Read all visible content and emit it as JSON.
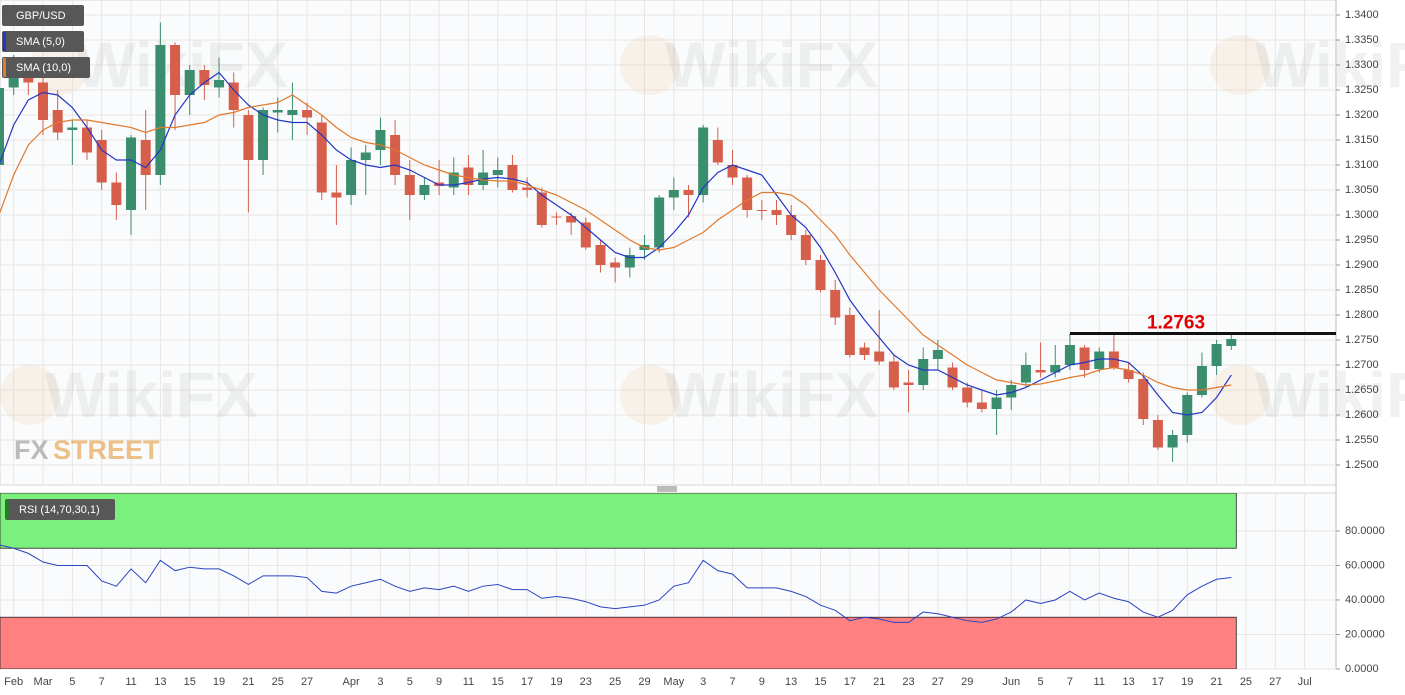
{
  "chart_data": [
    {
      "type": "candlestick",
      "categories": [
        null,
        "Feb",
        null,
        "Mar",
        null,
        "5",
        null,
        "7",
        null,
        "11",
        null,
        "13",
        null,
        "15",
        null,
        "19",
        null,
        "21",
        null,
        "25",
        null,
        "27",
        null,
        null,
        "Apr",
        null,
        "3",
        null,
        "5",
        null,
        "9",
        null,
        "11",
        null,
        "15",
        null,
        "17",
        null,
        "19",
        null,
        "23",
        null,
        "25",
        null,
        "29",
        null,
        "May",
        null,
        "3",
        null,
        "7",
        null,
        "9",
        null,
        "13",
        null,
        "15",
        null,
        "17",
        null,
        "21",
        null,
        "23",
        null,
        "27",
        null,
        "29",
        null,
        null,
        "Jun",
        null,
        "5",
        null,
        "7",
        null,
        "11",
        null,
        "13",
        null,
        "17",
        null,
        "19",
        null,
        "21",
        null,
        "25",
        null,
        "27",
        null,
        "Jul"
      ],
      "series": [
        {
          "name": "GBP/USD",
          "up_color": "#3a8d6d",
          "down_color": "#d65f4b",
          "open": [
            1.31,
            1.3255,
            1.33,
            1.3265,
            1.321,
            1.317,
            1.3175,
            1.315,
            1.3065,
            1.301,
            1.315,
            1.308,
            1.334,
            1.324,
            1.329,
            1.3255,
            1.3265,
            1.32,
            1.311,
            1.3205,
            1.32,
            1.321,
            1.3185,
            1.3045,
            1.304,
            1.311,
            1.313,
            1.316,
            1.308,
            1.304,
            1.3065,
            1.3055,
            1.3095,
            1.306,
            1.308,
            1.31,
            1.3055,
            1.3045,
            1.2997,
            1.2998,
            1.2985,
            1.294,
            1.2905,
            1.2895,
            1.293,
            1.2935,
            1.3035,
            1.305,
            1.304,
            1.315,
            1.31,
            1.3075,
            1.301,
            1.301,
            1.3,
            1.296,
            1.291,
            1.285,
            1.28,
            1.2735,
            1.2727,
            1.2707,
            1.2665,
            1.266,
            1.2712,
            1.2695,
            1.2655,
            1.2625,
            1.2612,
            1.2635,
            1.2665,
            1.269,
            1.2685,
            1.27,
            1.2735,
            1.2692,
            1.2727,
            1.269,
            1.2672,
            1.259,
            1.2535,
            1.256,
            1.264,
            1.2698,
            1.2738,
            null,
            null,
            null,
            null,
            null
          ],
          "high": [
            1.329,
            1.332,
            1.331,
            1.329,
            1.325,
            1.319,
            1.319,
            1.317,
            1.3085,
            1.316,
            1.321,
            1.3385,
            1.3345,
            1.33,
            1.33,
            1.3315,
            1.3285,
            1.321,
            1.3215,
            1.3235,
            1.3265,
            1.3225,
            1.32,
            1.31,
            1.3135,
            1.314,
            1.3195,
            1.319,
            1.311,
            1.3075,
            1.311,
            1.3115,
            1.312,
            1.313,
            1.3115,
            1.312,
            1.3075,
            1.3055,
            1.3005,
            1.3005,
            1.2995,
            1.295,
            1.2915,
            1.2935,
            1.296,
            1.304,
            1.3075,
            1.306,
            1.318,
            1.3175,
            1.313,
            1.308,
            1.303,
            1.303,
            1.302,
            1.297,
            1.292,
            1.287,
            1.2815,
            1.2745,
            1.281,
            1.272,
            1.269,
            1.2735,
            1.275,
            1.2705,
            1.2665,
            1.265,
            1.265,
            1.267,
            1.2725,
            1.2745,
            1.274,
            1.2763,
            1.274,
            1.2735,
            1.276,
            1.2705,
            1.2685,
            1.26,
            1.257,
            1.2645,
            1.2725,
            1.275,
            1.276,
            null,
            null,
            null,
            null,
            null
          ],
          "low": [
            1.309,
            1.324,
            1.324,
            1.316,
            1.315,
            1.31,
            1.311,
            1.305,
            1.299,
            1.296,
            1.301,
            1.306,
            1.317,
            1.32,
            1.323,
            1.3235,
            1.3175,
            1.3005,
            1.308,
            1.3165,
            1.315,
            1.316,
            1.303,
            1.298,
            1.302,
            1.304,
            1.31,
            1.306,
            1.299,
            1.303,
            1.304,
            1.304,
            1.304,
            1.305,
            1.3055,
            1.3045,
            1.3035,
            1.2975,
            1.298,
            1.296,
            1.293,
            1.2885,
            1.2865,
            1.2875,
            1.291,
            1.2925,
            1.301,
            1.2995,
            1.3025,
            1.31,
            1.306,
            1.2995,
            1.299,
            1.298,
            1.295,
            1.29,
            1.2845,
            1.278,
            1.2715,
            1.271,
            1.27,
            1.265,
            1.2605,
            1.265,
            1.269,
            1.265,
            1.2615,
            1.2605,
            1.256,
            1.261,
            1.2655,
            1.2675,
            1.2675,
            1.269,
            1.2675,
            1.2685,
            1.269,
            1.2665,
            1.258,
            1.253,
            1.2506,
            1.2545,
            1.2635,
            1.268,
            1.273,
            null,
            null,
            null,
            null,
            null
          ],
          "close": [
            1.3254,
            1.33,
            1.3265,
            1.319,
            1.3165,
            1.3175,
            1.3125,
            1.3065,
            1.302,
            1.3155,
            1.308,
            1.334,
            1.324,
            1.329,
            1.326,
            1.327,
            1.321,
            1.311,
            1.321,
            1.321,
            1.321,
            1.3195,
            1.3045,
            1.3035,
            1.311,
            1.3125,
            1.317,
            1.308,
            1.304,
            1.306,
            1.3058,
            1.3085,
            1.306,
            1.3085,
            1.309,
            1.305,
            1.305,
            1.298,
            1.2996,
            1.2985,
            1.2935,
            1.29,
            1.2895,
            1.292,
            1.294,
            1.3035,
            1.305,
            1.304,
            1.3175,
            1.3105,
            1.3075,
            1.301,
            1.3008,
            1.3,
            1.296,
            1.291,
            1.285,
            1.2795,
            1.272,
            1.272,
            1.2707,
            1.2655,
            1.266,
            1.2712,
            1.273,
            1.2655,
            1.2625,
            1.2612,
            1.2635,
            1.266,
            1.27,
            1.2685,
            1.27,
            1.274,
            1.269,
            1.2727,
            1.2695,
            1.2672,
            1.2592,
            1.2535,
            1.256,
            1.264,
            1.2698,
            1.2742,
            1.2752,
            null,
            null,
            null,
            null,
            null
          ]
        },
        {
          "name": "SMA (5,0)",
          "type": "line",
          "color": "#2336c4",
          "values": [
            1.31,
            1.318,
            1.323,
            1.3245,
            1.324,
            1.3215,
            1.3175,
            1.313,
            1.311,
            1.311,
            1.3095,
            1.313,
            1.32,
            1.324,
            1.3265,
            1.3285,
            1.325,
            1.322,
            1.32,
            1.319,
            1.3185,
            1.3185,
            1.316,
            1.313,
            1.311,
            1.31,
            1.3095,
            1.31,
            1.309,
            1.3075,
            1.306,
            1.306,
            1.3065,
            1.3072,
            1.3075,
            1.3072,
            1.3065,
            1.304,
            1.302,
            1.3,
            1.2975,
            1.295,
            1.2925,
            1.2915,
            1.2915,
            1.2935,
            1.2965,
            1.3,
            1.3055,
            1.3085,
            1.31,
            1.309,
            1.308,
            1.304,
            1.3,
            1.2975,
            1.2935,
            1.2885,
            1.283,
            1.279,
            1.2755,
            1.272,
            1.27,
            1.269,
            1.269,
            1.2675,
            1.266,
            1.265,
            1.264,
            1.2645,
            1.2655,
            1.267,
            1.2685,
            1.27,
            1.2705,
            1.2712,
            1.2712,
            1.2705,
            1.2678,
            1.264,
            1.2605,
            1.26,
            1.2605,
            1.2635,
            1.268,
            null,
            null,
            null,
            null,
            null
          ]
        },
        {
          "name": "SMA (10,0)",
          "type": "line",
          "color": "#e07a2c",
          "values": [
            1.3,
            1.308,
            1.314,
            1.317,
            1.3185,
            1.319,
            1.319,
            1.3185,
            1.318,
            1.3175,
            1.3165,
            1.3175,
            1.3175,
            1.318,
            1.3185,
            1.32,
            1.3205,
            1.3215,
            1.322,
            1.3225,
            1.324,
            1.322,
            1.32,
            1.3175,
            1.3155,
            1.3145,
            1.314,
            1.313,
            1.3115,
            1.31,
            1.309,
            1.308,
            1.3075,
            1.307,
            1.3068,
            1.3068,
            1.306,
            1.305,
            1.304,
            1.3025,
            1.301,
            1.299,
            1.297,
            1.295,
            1.2935,
            1.293,
            1.2935,
            1.295,
            1.2965,
            1.299,
            1.301,
            1.303,
            1.3045,
            1.3045,
            1.304,
            1.302,
            1.299,
            1.296,
            1.292,
            1.2885,
            1.285,
            1.282,
            1.279,
            1.276,
            1.274,
            1.272,
            1.27,
            1.2685,
            1.267,
            1.2665,
            1.266,
            1.2662,
            1.2668,
            1.2675,
            1.268,
            1.269,
            1.2695,
            1.269,
            1.268,
            1.2665,
            1.2655,
            1.265,
            1.265,
            1.2655,
            1.266,
            null,
            null,
            null,
            null,
            null
          ]
        }
      ],
      "ylim": [
        1.246,
        1.343
      ],
      "yticks": [
        {
          "value": 1.34,
          "label": "1.3400"
        },
        {
          "value": 1.335,
          "label": "1.3350"
        },
        {
          "value": 1.33,
          "label": "1.3300"
        },
        {
          "value": 1.325,
          "label": "1.3250"
        },
        {
          "value": 1.32,
          "label": "1.3200"
        },
        {
          "value": 1.315,
          "label": "1.3150"
        },
        {
          "value": 1.31,
          "label": "1.3100"
        },
        {
          "value": 1.305,
          "label": "1.3050"
        },
        {
          "value": 1.3,
          "label": "1.3000"
        },
        {
          "value": 1.295,
          "label": "1.2950"
        },
        {
          "value": 1.29,
          "label": "1.2900"
        },
        {
          "value": 1.285,
          "label": "1.2850"
        },
        {
          "value": 1.28,
          "label": "1.2800"
        },
        {
          "value": 1.275,
          "label": "1.2750"
        },
        {
          "value": 1.27,
          "label": "1.2700"
        },
        {
          "value": 1.265,
          "label": "1.2650"
        },
        {
          "value": 1.26,
          "label": "1.2600"
        },
        {
          "value": 1.255,
          "label": "1.2550"
        },
        {
          "value": 1.25,
          "label": "1.2500"
        }
      ],
      "grid": true,
      "annotations": [
        {
          "value": 1.2763,
          "color": "#e00000"
        }
      ]
    },
    {
      "type": "line",
      "series": [
        {
          "name": "RSI (14,70,30,1)",
          "color": "#2a43c0",
          "values": [
            72,
            70,
            67,
            62,
            60,
            60,
            60,
            51,
            48,
            58,
            50,
            63,
            57,
            59,
            58,
            58,
            54,
            49,
            54,
            54,
            54,
            53,
            45,
            44,
            48,
            50,
            52,
            48,
            45,
            47,
            46,
            48,
            45,
            48,
            49,
            46,
            46,
            41,
            42,
            41,
            39,
            36,
            35,
            36,
            37,
            40,
            48,
            50,
            63,
            57,
            55,
            47,
            47,
            47,
            45,
            42,
            37,
            34,
            28,
            30,
            29,
            27,
            27,
            33,
            32,
            30,
            28,
            27,
            29,
            33,
            40,
            38,
            40,
            45,
            40,
            44,
            41,
            39,
            33,
            30,
            34,
            43,
            48,
            52,
            53,
            null,
            null,
            null,
            null,
            null
          ]
        }
      ],
      "ylim": [
        0,
        102
      ],
      "yticks": [
        {
          "value": 0,
          "label": "0.0000"
        },
        {
          "value": 20,
          "label": "20.0000"
        },
        {
          "value": 40,
          "label": "40.0000"
        },
        {
          "value": 60,
          "label": "60.0000"
        },
        {
          "value": 80,
          "label": "80.0000"
        }
      ],
      "overbought": 70,
      "oversold": 30,
      "overbought_color": "#7cf07c",
      "oversold_color": "#ff8080",
      "grid": true
    }
  ],
  "watermark": "WikiFX",
  "logo": [
    "FX",
    "STREET"
  ]
}
